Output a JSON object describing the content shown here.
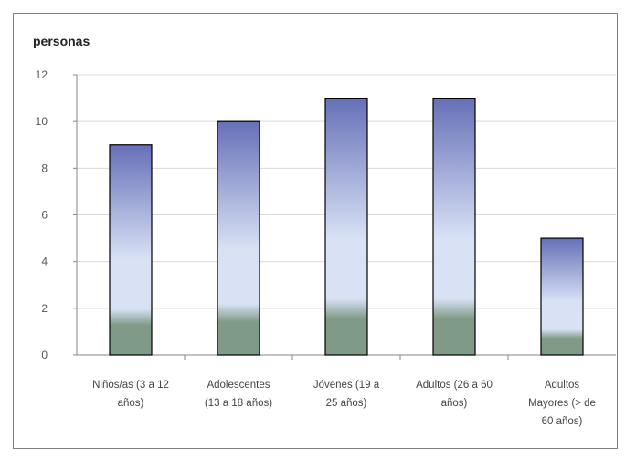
{
  "chart_data": {
    "type": "bar",
    "title": "",
    "xlabel": "",
    "ylabel": "personas",
    "ylim": [
      0,
      12
    ],
    "yticks": [
      "0",
      "2",
      "4",
      "6",
      "8",
      "10",
      "12"
    ],
    "categories": [
      [
        "Niños/as (3 a 12",
        "años)"
      ],
      [
        "Adolescentes",
        "(13 a 18 años)"
      ],
      [
        "Jóvenes (19 a",
        "25 años)"
      ],
      [
        "Adultos (26 a 60",
        "años)"
      ],
      [
        "Adultos",
        "Mayores (> de",
        "60 años)"
      ]
    ],
    "values": [
      9,
      10,
      11,
      11,
      5
    ],
    "grid": true,
    "legend": "none",
    "colors": {
      "bar_top": "#6670b8",
      "bar_mid": "#d9e2f5",
      "bar_bottom": "#7f9a86",
      "bar_border": "#000000",
      "grid": "#d9d9d9",
      "axis": "#868686"
    }
  }
}
